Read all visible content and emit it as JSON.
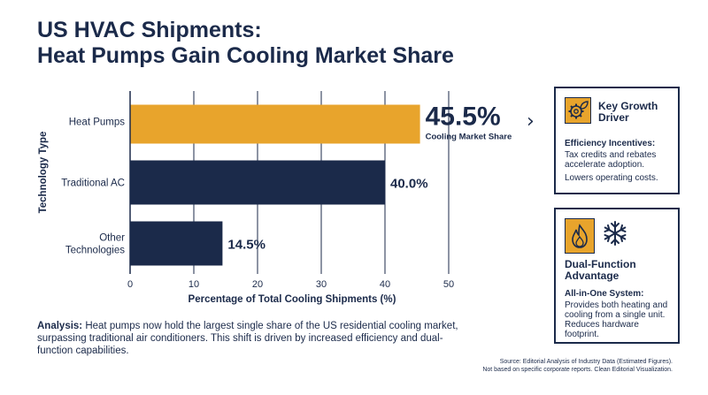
{
  "title": {
    "line1": "US HVAC Shipments:",
    "line2": "Heat Pumps Gain Cooling Market Share"
  },
  "chart_data": {
    "type": "bar",
    "orientation": "horizontal",
    "categories": [
      "Heat Pumps",
      "Traditional AC",
      "Other Technologies"
    ],
    "values": [
      45.5,
      40.0,
      14.5
    ],
    "value_labels": [
      "45.5%",
      "40.0%",
      "14.5%"
    ],
    "highlight_caption": "Cooling Market Share",
    "xlabel": "Percentage of Total Cooling Shipments (%)",
    "ylabel": "Technology Type",
    "xlim": [
      0,
      50
    ],
    "xticks": [
      0,
      10,
      20,
      30,
      40,
      50
    ],
    "grid": "vertical",
    "colors": {
      "highlight": "#e8a42c",
      "default": "#1b2a4a"
    }
  },
  "panels": {
    "growth": {
      "icon": "gear-leaf-icon",
      "title": "Key Growth Driver",
      "subtitle": "Efficiency Incentives:",
      "text1": "Tax credits and rebates accelerate adoption.",
      "text2": "Lowers operating costs."
    },
    "dual": {
      "icons": [
        "flame-icon",
        "snowflake-icon"
      ],
      "title": "Dual-Function Advantage",
      "subtitle": "All-in-One System:",
      "text": "Provides both heating and cooling from a single unit. Reduces hardware footprint."
    }
  },
  "analysis": {
    "label": "Analysis:",
    "text": " Heat pumps now hold the largest single share of the US residential cooling market, surpassing traditional air conditioners. This shift is driven by increased efficiency and dual-function capabilities."
  },
  "source": {
    "line1": "Source: Editorial Analysis of Industry Data (Estimated Figures).",
    "line2": "Not based on specific corporate reports. Clean Editorial Visualization."
  },
  "colors": {
    "navy": "#1b2a4a",
    "accent": "#e8a42c"
  }
}
